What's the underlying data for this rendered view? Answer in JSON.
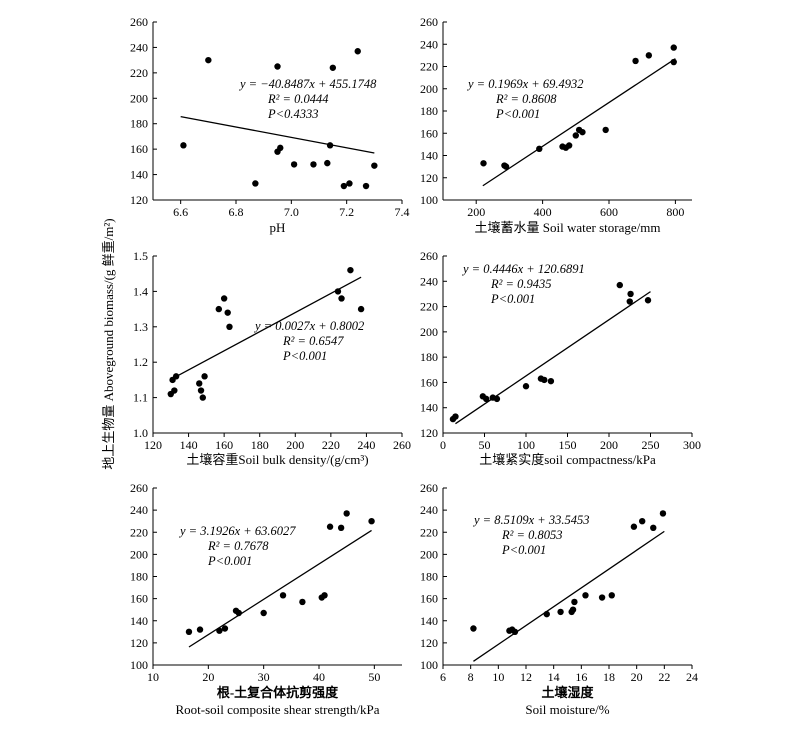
{
  "y_axis_label": "地上生物量 Aboveground biomass/(g 鲜重/m²)",
  "chart_data": [
    {
      "type": "scatter",
      "xlabel_lines": [
        "pH"
      ],
      "x_ticks": [
        6.6,
        6.8,
        7.0,
        7.2,
        7.4
      ],
      "y_ticks": [
        120,
        140,
        160,
        180,
        200,
        220,
        240,
        260
      ],
      "xlim": [
        6.5,
        7.4
      ],
      "ylim": [
        120,
        260
      ],
      "grid": false,
      "points": [
        [
          6.61,
          163
        ],
        [
          6.7,
          230
        ],
        [
          6.87,
          133
        ],
        [
          6.95,
          225
        ],
        [
          6.95,
          158
        ],
        [
          6.96,
          161
        ],
        [
          7.01,
          148
        ],
        [
          7.08,
          148
        ],
        [
          7.13,
          149
        ],
        [
          7.14,
          163
        ],
        [
          7.15,
          224
        ],
        [
          7.19,
          131
        ],
        [
          7.21,
          133
        ],
        [
          7.24,
          237
        ],
        [
          7.27,
          131
        ],
        [
          7.3,
          147
        ]
      ],
      "fit": {
        "slope": -40.8487,
        "intercept": 455.1748,
        "x_range": [
          6.6,
          7.3
        ]
      },
      "equation": [
        "y = −40.8487x + 455.1748",
        "R² = 0.0444",
        "P<0.4333"
      ]
    },
    {
      "type": "scatter",
      "xlabel_lines": [
        "土壤蓄水量 Soil water storage/mm"
      ],
      "x_ticks": [
        200,
        400,
        600,
        800
      ],
      "y_ticks": [
        100,
        120,
        140,
        160,
        180,
        200,
        220,
        240,
        260
      ],
      "xlim": [
        100,
        850
      ],
      "ylim": [
        100,
        260
      ],
      "grid": false,
      "points": [
        [
          222,
          133
        ],
        [
          285,
          131
        ],
        [
          290,
          130
        ],
        [
          390,
          146
        ],
        [
          460,
          148
        ],
        [
          470,
          147
        ],
        [
          480,
          149
        ],
        [
          500,
          158
        ],
        [
          510,
          163
        ],
        [
          520,
          161
        ],
        [
          590,
          163
        ],
        [
          680,
          225
        ],
        [
          720,
          230
        ],
        [
          795,
          237
        ],
        [
          795,
          224
        ]
      ],
      "fit": {
        "slope": 0.1969,
        "intercept": 69.4932,
        "x_range": [
          220,
          800
        ]
      },
      "equation": [
        "y = 0.1969x + 69.4932",
        "R² = 0.8608",
        "P<0.001"
      ]
    },
    {
      "type": "scatter",
      "xlabel_lines": [
        "土壤容重Soil bulk density/(g/cm³)"
      ],
      "x_ticks": [
        120,
        140,
        160,
        180,
        200,
        220,
        240,
        260
      ],
      "y_ticks": [
        1.0,
        1.1,
        1.2,
        1.3,
        1.4,
        1.5
      ],
      "xlim": [
        120,
        260
      ],
      "ylim": [
        1.0,
        1.5
      ],
      "grid": false,
      "points": [
        [
          130,
          1.11
        ],
        [
          131,
          1.15
        ],
        [
          132,
          1.12
        ],
        [
          133,
          1.16
        ],
        [
          146,
          1.14
        ],
        [
          147,
          1.12
        ],
        [
          148,
          1.1
        ],
        [
          149,
          1.16
        ],
        [
          157,
          1.35
        ],
        [
          160,
          1.38
        ],
        [
          162,
          1.34
        ],
        [
          163,
          1.3
        ],
        [
          224,
          1.4
        ],
        [
          226,
          1.38
        ],
        [
          231,
          1.46
        ],
        [
          237,
          1.35
        ]
      ],
      "fit": {
        "slope": 0.0027,
        "intercept": 0.8002,
        "x_range": [
          130,
          237
        ]
      },
      "equation": [
        "y = 0.0027x + 0.8002",
        "R² = 0.6547",
        "P<0.001"
      ]
    },
    {
      "type": "scatter",
      "xlabel_lines": [
        "土壤紧实度soil compactness/kPa"
      ],
      "x_ticks": [
        0,
        50,
        100,
        150,
        200,
        250,
        300
      ],
      "y_ticks": [
        120,
        140,
        160,
        180,
        200,
        220,
        240,
        260
      ],
      "xlim": [
        0,
        300
      ],
      "ylim": [
        120,
        260
      ],
      "grid": false,
      "points": [
        [
          12,
          131
        ],
        [
          15,
          133
        ],
        [
          48,
          149
        ],
        [
          52,
          147
        ],
        [
          60,
          148
        ],
        [
          65,
          147
        ],
        [
          100,
          157
        ],
        [
          118,
          163
        ],
        [
          122,
          162
        ],
        [
          130,
          161
        ],
        [
          213,
          237
        ],
        [
          225,
          224
        ],
        [
          226,
          230
        ],
        [
          247,
          225
        ]
      ],
      "fit": {
        "slope": 0.4446,
        "intercept": 120.6891,
        "x_range": [
          15,
          250
        ]
      },
      "equation": [
        "y = 0.4446x + 120.6891",
        "R² = 0.9435",
        "P<0.001"
      ]
    },
    {
      "type": "scatter",
      "xlabel_lines": [
        "根-土复合体抗剪强度",
        "Root-soil composite shear strength/kPa"
      ],
      "x_ticks": [
        10,
        20,
        30,
        40,
        50
      ],
      "y_ticks": [
        100,
        120,
        140,
        160,
        180,
        200,
        220,
        240,
        260
      ],
      "xlim": [
        10,
        55
      ],
      "ylim": [
        100,
        260
      ],
      "grid": false,
      "points": [
        [
          16.5,
          130
        ],
        [
          18.5,
          132
        ],
        [
          22,
          131
        ],
        [
          23,
          133
        ],
        [
          25,
          149
        ],
        [
          25.5,
          147
        ],
        [
          30,
          147
        ],
        [
          33.5,
          163
        ],
        [
          37,
          157
        ],
        [
          40.5,
          161
        ],
        [
          41,
          163
        ],
        [
          42,
          225
        ],
        [
          44,
          224
        ],
        [
          45,
          237
        ],
        [
          49.5,
          230
        ]
      ],
      "fit": {
        "slope": 3.1926,
        "intercept": 63.6027,
        "x_range": [
          16.5,
          49.5
        ]
      },
      "equation": [
        "y = 3.1926x + 63.6027",
        "R² = 0.7678",
        "P<0.001"
      ]
    },
    {
      "type": "scatter",
      "xlabel_lines": [
        "土壤湿度",
        "Soil moisture/%"
      ],
      "x_ticks": [
        6,
        8,
        10,
        12,
        14,
        16,
        18,
        20,
        22,
        24
      ],
      "y_ticks": [
        100,
        120,
        140,
        160,
        180,
        200,
        220,
        240,
        260
      ],
      "xlim": [
        6,
        24
      ],
      "ylim": [
        100,
        260
      ],
      "grid": false,
      "points": [
        [
          8.2,
          133
        ],
        [
          10.8,
          131
        ],
        [
          11.0,
          132
        ],
        [
          11.2,
          130
        ],
        [
          13.5,
          146
        ],
        [
          14.5,
          148
        ],
        [
          15.3,
          148
        ],
        [
          15.4,
          150
        ],
        [
          15.5,
          157
        ],
        [
          16.3,
          163
        ],
        [
          17.5,
          161
        ],
        [
          18.2,
          163
        ],
        [
          19.8,
          225
        ],
        [
          20.4,
          230
        ],
        [
          21.2,
          224
        ],
        [
          21.9,
          237
        ]
      ],
      "fit": {
        "slope": 8.5109,
        "intercept": 33.5453,
        "x_range": [
          8.2,
          22
        ]
      },
      "equation": [
        "y = 8.5109x + 33.5453",
        "R² = 0.8053",
        "P<0.001"
      ]
    }
  ]
}
